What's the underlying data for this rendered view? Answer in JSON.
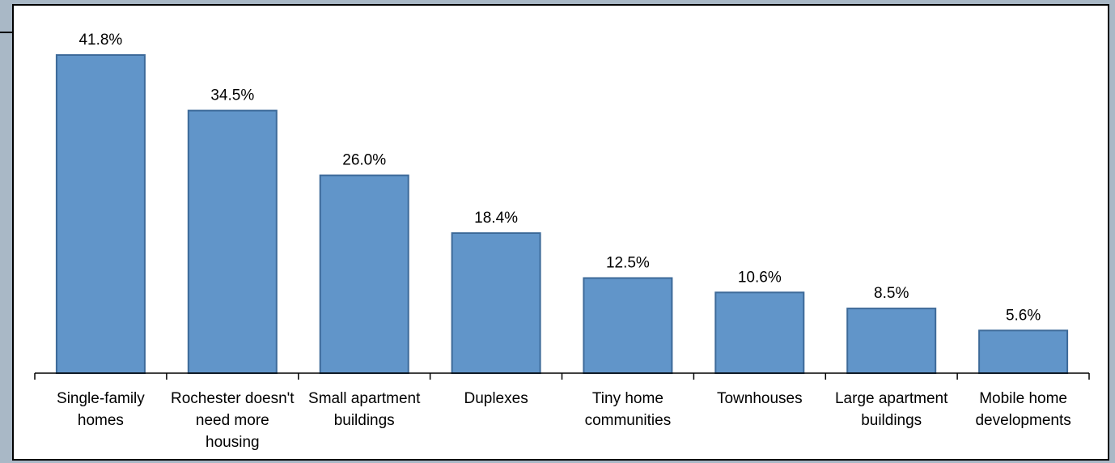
{
  "chart_data": {
    "type": "bar",
    "categories": [
      [
        "Single-family",
        "homes"
      ],
      [
        "Rochester doesn't",
        "need more",
        "housing"
      ],
      [
        "Small apartment",
        "buildings"
      ],
      [
        "Duplexes"
      ],
      [
        "Tiny home",
        "communities"
      ],
      [
        "Townhouses"
      ],
      [
        "Large apartment",
        "buildings"
      ],
      [
        "Mobile home",
        "developments"
      ]
    ],
    "values": [
      41.8,
      34.5,
      26.0,
      18.4,
      12.5,
      10.6,
      8.5,
      5.6
    ],
    "value_labels": [
      "41.8%",
      "34.5%",
      "26.0%",
      "18.4%",
      "12.5%",
      "10.6%",
      "8.5%",
      "5.6%"
    ],
    "title": "",
    "xlabel": "",
    "ylabel": "",
    "ylim": [
      0,
      45
    ],
    "grid": false,
    "legend": "none",
    "colors": {
      "bar_fill": "#6195c9",
      "bar_stroke": "#3d6a99",
      "background": "#ffffff",
      "frame": "#a9b8c6",
      "axis": "#000000"
    }
  }
}
